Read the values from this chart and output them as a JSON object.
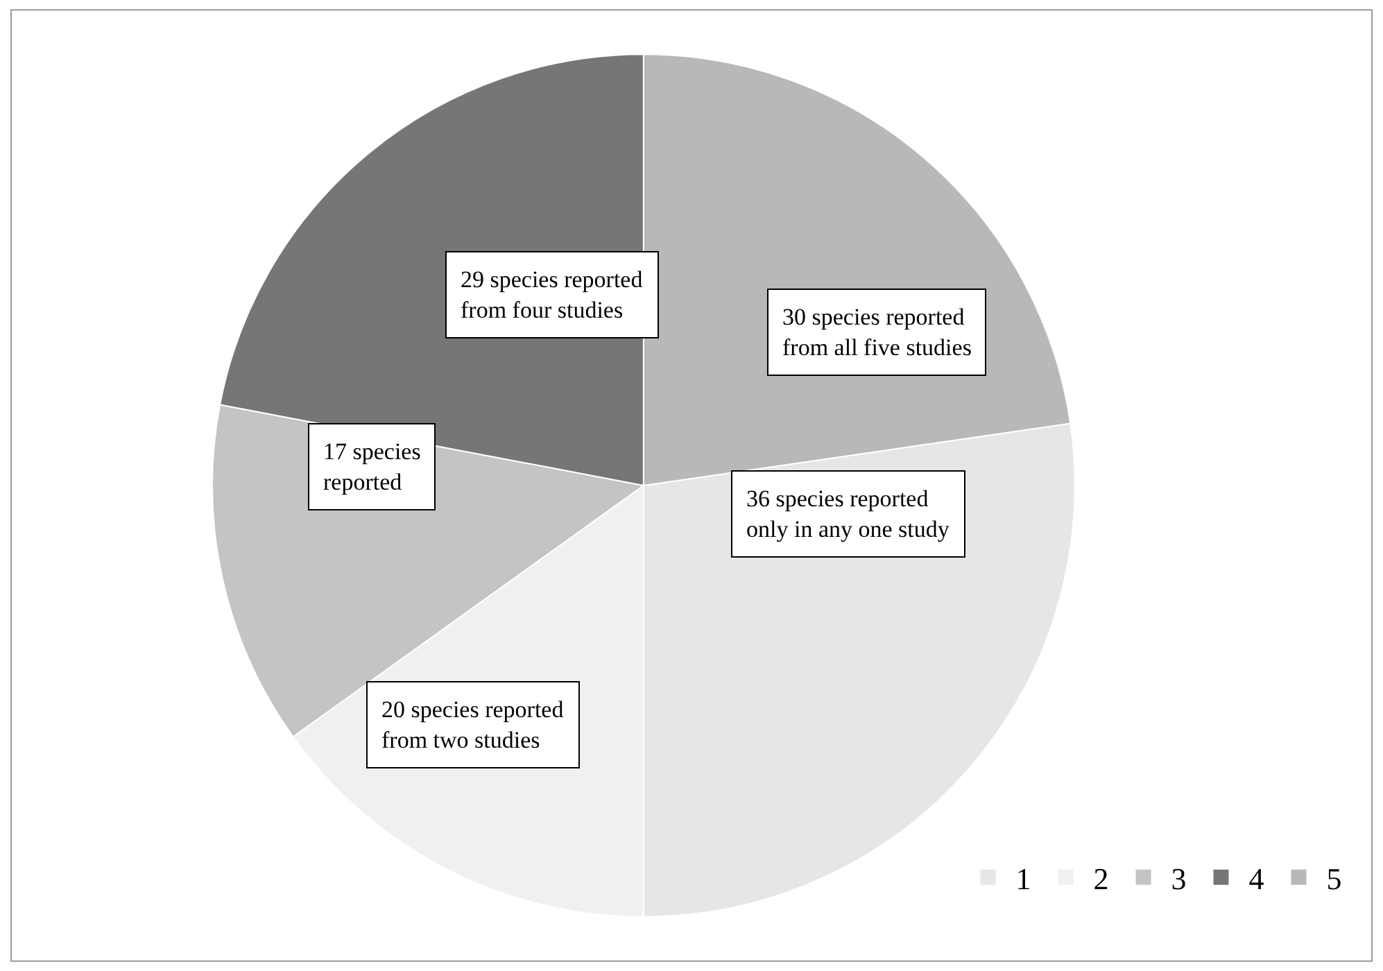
{
  "chart_data": {
    "type": "pie",
    "categories": [
      "1",
      "2",
      "3",
      "4",
      "5"
    ],
    "values": [
      27.3,
      15.1,
      12.9,
      22.0,
      22.7
    ],
    "colors": [
      "#e6e6e6",
      "#f0f0f0",
      "#c4c4c4",
      "#767676",
      "#b8b8b8"
    ],
    "annotations": [
      "36 species reported\nonly in any one study",
      "20 species reported\nfrom two studies",
      "17 species\nreported",
      "29 species reported\nfrom four studies",
      "30 species reported\nfrom all five studies"
    ],
    "legend": "bottom right"
  }
}
